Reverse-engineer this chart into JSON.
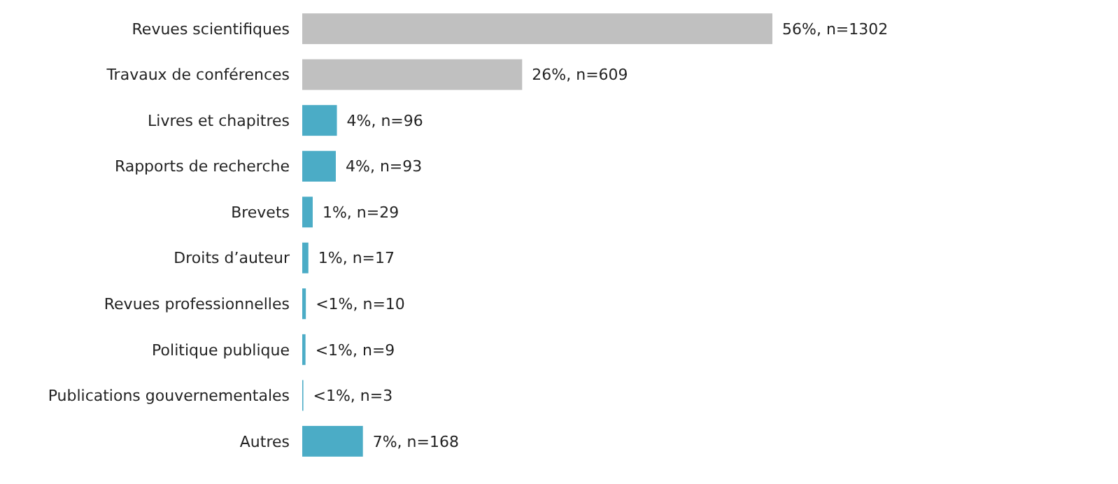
{
  "chart_data": {
    "type": "bar",
    "orientation": "horizontal",
    "categories": [
      "Revues scientifiques",
      "Travaux de conférences",
      "Livres et chapitres",
      "Rapports de recherche",
      "Brevets",
      "Droits d’auteur",
      "Revues professionnelles",
      "Politique publique",
      "Publications gouvernementales",
      "Autres"
    ],
    "values": [
      1302,
      609,
      96,
      93,
      29,
      17,
      10,
      9,
      3,
      168
    ],
    "colors": [
      "#c0c0c0",
      "#c0c0c0",
      "#4bacc6",
      "#4bacc6",
      "#4bacc6",
      "#4bacc6",
      "#4bacc6",
      "#4bacc6",
      "#4bacc6",
      "#4bacc6"
    ],
    "value_labels": [
      "56%, n=1302",
      "26%, n=609",
      "4%, n=96",
      "4%, n=93",
      "1%, n=29",
      "1%, n=17",
      "<1%, n=10",
      "<1%, n=9",
      "<1%, n=3",
      "7%, n=168"
    ]
  }
}
